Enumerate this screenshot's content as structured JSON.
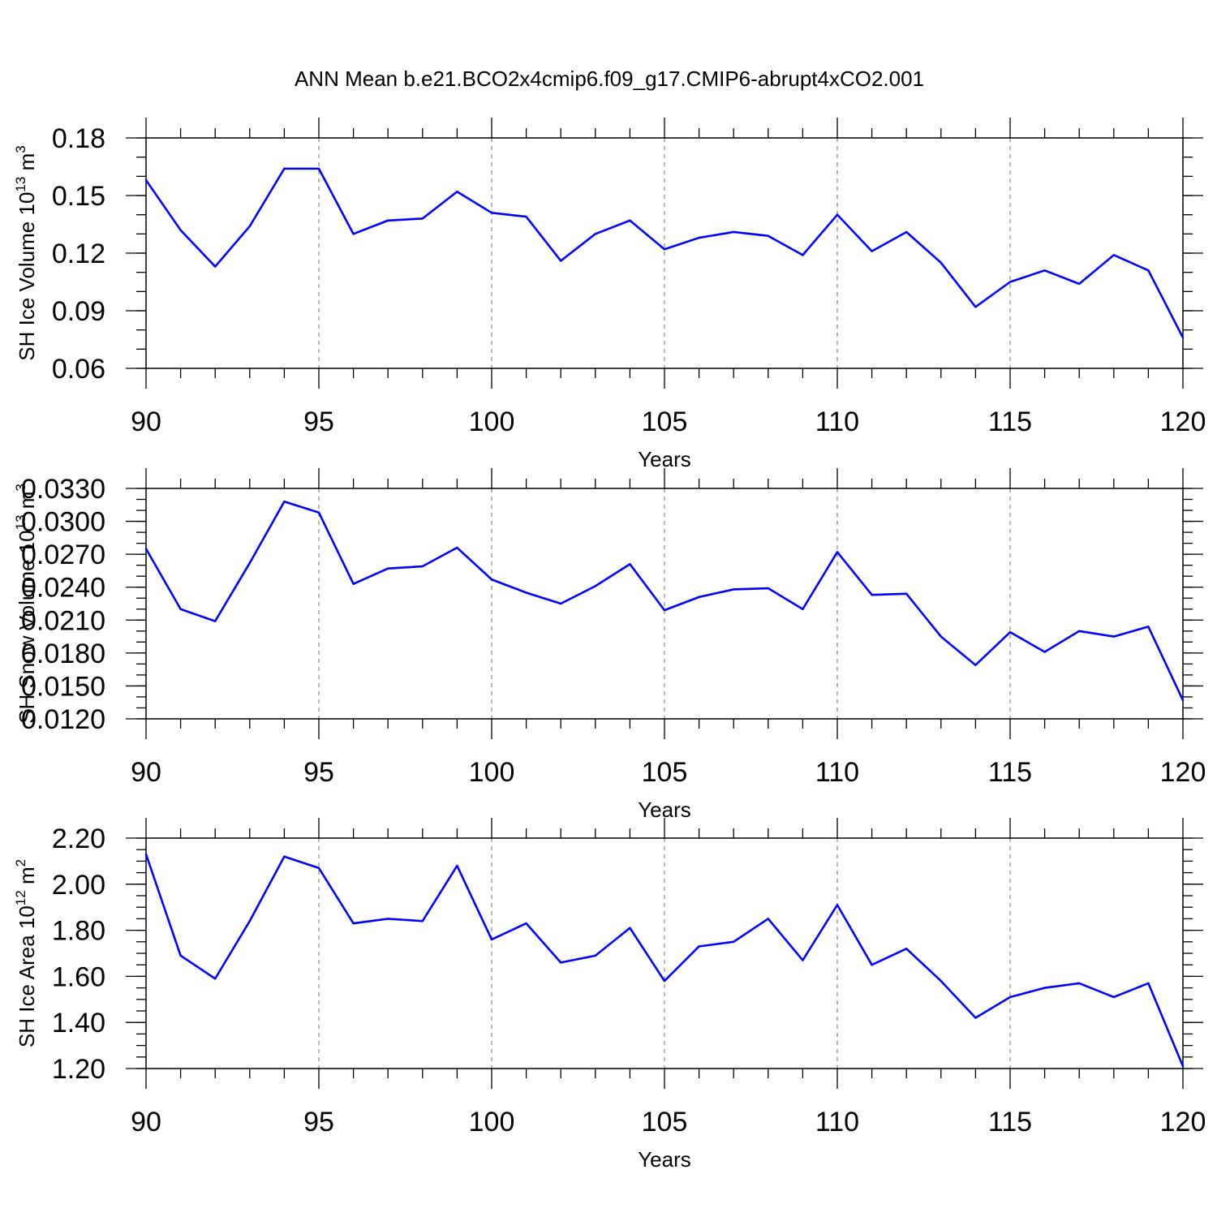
{
  "title": "ANN Mean b.e21.BCO2x4cmip6.f09_g17.CMIP6-abrupt4xCO2.001",
  "line_color": "#0000ff",
  "grid_color": "#888888",
  "chart_data": [
    {
      "type": "line",
      "ylabel_main": "SH Ice Volume 10",
      "ylabel_exp": "13",
      "ylabel_unit": " m",
      "ylabel_unit_exp": "3",
      "xlabel": "Years",
      "xlim": [
        90,
        120
      ],
      "ylim": [
        0.06,
        0.18
      ],
      "xticks": [
        "90",
        "95",
        "100",
        "105",
        "110",
        "115",
        "120"
      ],
      "yticks": [
        "0.06",
        "0.09",
        "0.12",
        "0.15",
        "0.18"
      ],
      "ytick_values": [
        0.06,
        0.09,
        0.12,
        0.15,
        0.18
      ],
      "y_minor_step": 0.01,
      "grid": "vertical dashed at major x ticks",
      "x": [
        90,
        91,
        92,
        93,
        94,
        95,
        96,
        97,
        98,
        99,
        100,
        101,
        102,
        103,
        104,
        105,
        106,
        107,
        108,
        109,
        110,
        111,
        112,
        113,
        114,
        115,
        116,
        117,
        118,
        119,
        120
      ],
      "values": [
        0.158,
        0.132,
        0.113,
        0.134,
        0.164,
        0.164,
        0.13,
        0.137,
        0.138,
        0.152,
        0.141,
        0.139,
        0.116,
        0.13,
        0.137,
        0.122,
        0.128,
        0.131,
        0.129,
        0.119,
        0.14,
        0.121,
        0.131,
        0.115,
        0.092,
        0.105,
        0.111,
        0.104,
        0.119,
        0.111,
        0.076
      ]
    },
    {
      "type": "line",
      "ylabel_main": "SH Snow Volume 10",
      "ylabel_exp": "13",
      "ylabel_unit": " m",
      "ylabel_unit_exp": "3",
      "xlabel": "Years",
      "xlim": [
        90,
        120
      ],
      "ylim": [
        0.012,
        0.033
      ],
      "xticks": [
        "90",
        "95",
        "100",
        "105",
        "110",
        "115",
        "120"
      ],
      "yticks": [
        "0.0120",
        "0.0150",
        "0.0180",
        "0.0210",
        "0.0240",
        "0.0270",
        "0.0300",
        "0.0330"
      ],
      "ytick_values": [
        0.012,
        0.015,
        0.018,
        0.021,
        0.024,
        0.027,
        0.03,
        0.033
      ],
      "y_minor_step": 0.001,
      "grid": "vertical dashed at major x ticks",
      "x": [
        90,
        91,
        92,
        93,
        94,
        95,
        96,
        97,
        98,
        99,
        100,
        101,
        102,
        103,
        104,
        105,
        106,
        107,
        108,
        109,
        110,
        111,
        112,
        113,
        114,
        115,
        116,
        117,
        118,
        119,
        120
      ],
      "values": [
        0.0275,
        0.022,
        0.0209,
        0.0262,
        0.0318,
        0.0308,
        0.0243,
        0.0257,
        0.0259,
        0.0276,
        0.0247,
        0.0235,
        0.0225,
        0.0241,
        0.0261,
        0.0219,
        0.0231,
        0.0238,
        0.0239,
        0.022,
        0.0272,
        0.0233,
        0.0234,
        0.0195,
        0.0169,
        0.0199,
        0.0181,
        0.02,
        0.0195,
        0.0204,
        0.0137
      ]
    },
    {
      "type": "line",
      "ylabel_main": "SH Ice Area 10",
      "ylabel_exp": "12",
      "ylabel_unit": " m",
      "ylabel_unit_exp": "2",
      "xlabel": "Years",
      "xlim": [
        90,
        120
      ],
      "ylim": [
        1.2,
        2.2
      ],
      "xticks": [
        "90",
        "95",
        "100",
        "105",
        "110",
        "115",
        "120"
      ],
      "yticks": [
        "1.20",
        "1.40",
        "1.60",
        "1.80",
        "2.00",
        "2.20"
      ],
      "ytick_values": [
        1.2,
        1.4,
        1.6,
        1.8,
        2.0,
        2.2
      ],
      "y_minor_step": 0.05,
      "grid": "vertical dashed at major x ticks",
      "x": [
        90,
        91,
        92,
        93,
        94,
        95,
        96,
        97,
        98,
        99,
        100,
        101,
        102,
        103,
        104,
        105,
        106,
        107,
        108,
        109,
        110,
        111,
        112,
        113,
        114,
        115,
        116,
        117,
        118,
        119,
        120
      ],
      "values": [
        2.13,
        1.69,
        1.59,
        1.84,
        2.12,
        2.07,
        1.83,
        1.85,
        1.84,
        2.08,
        1.76,
        1.83,
        1.66,
        1.69,
        1.81,
        1.58,
        1.73,
        1.75,
        1.85,
        1.67,
        1.91,
        1.65,
        1.72,
        1.58,
        1.42,
        1.51,
        1.55,
        1.57,
        1.51,
        1.57,
        1.21
      ]
    }
  ]
}
